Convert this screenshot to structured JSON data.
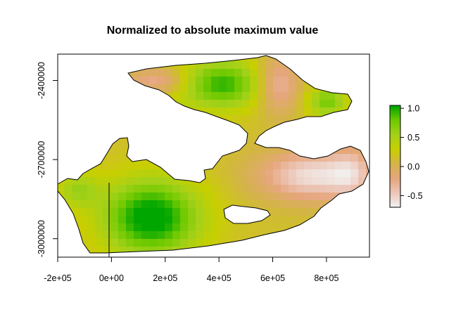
{
  "chart_data": {
    "type": "heatmap",
    "title": "Normalized to absolute maximum value",
    "xlabel": "",
    "ylabel": "",
    "xlim": [
      -200000,
      960000
    ],
    "ylim": [
      -3070000,
      -2300000
    ],
    "x_ticks": [
      -200000,
      0,
      200000,
      400000,
      600000,
      800000
    ],
    "x_tick_labels": [
      "-2e+05",
      "0e+00",
      "2e+05",
      "4e+05",
      "6e+05",
      "8e+05"
    ],
    "y_ticks": [
      -2400000,
      -2700000,
      -3000000
    ],
    "y_tick_labels": [
      "-2400000",
      "-2700000",
      "-3000000"
    ],
    "colorbar": {
      "range": [
        -0.7,
        1.05
      ],
      "ticks": [
        -0.5,
        0.0,
        0.5,
        1.0
      ],
      "tick_labels": [
        "-0.5",
        "0.0",
        "0.5",
        "1.0"
      ],
      "colors": [
        "#f2f2f2",
        "#ecc6b8",
        "#e6a67c",
        "#d4b34a",
        "#c8cf00",
        "#a4d11a",
        "#6ec900",
        "#00a600"
      ]
    },
    "grid": false,
    "legend_position": "right"
  }
}
